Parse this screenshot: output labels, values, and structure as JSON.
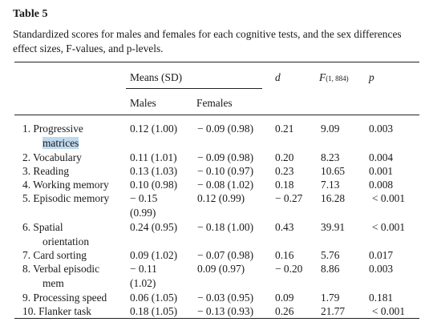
{
  "table": {
    "label": "Table 5",
    "caption_line1": "Standardized scores for males and females for each cognitive tests, and the sex differences",
    "caption_line2": "effect sizes, F-values, and p-levels.",
    "headers": {
      "means": "Means (SD)",
      "d": "d",
      "f_main": "F",
      "f_sub": "(1, 884)",
      "p": "p",
      "males": "Males",
      "females": "Females"
    },
    "rows": [
      {
        "test_line1": "1. Progressive",
        "test_line2": "matrices",
        "test_line2_highlighted": true,
        "males_line1": "0.12 (1.00)",
        "males_line2": "",
        "females": "− 0.09 (0.98)",
        "d": "0.21",
        "f": "9.09",
        "p": "0.003"
      },
      {
        "test_line1": "2. Vocabulary",
        "test_line2": "",
        "males_line1": "0.11 (1.01)",
        "males_line2": "",
        "females": "− 0.09 (0.98)",
        "d": "0.20",
        "f": "8.23",
        "p": "0.004"
      },
      {
        "test_line1": "3. Reading",
        "test_line2": "",
        "males_line1": "0.13 (1.03)",
        "males_line2": "",
        "females": "− 0.10 (0.97)",
        "d": "0.23",
        "f": "10.65",
        "p": "0.001"
      },
      {
        "test_line1": "4. Working memory",
        "test_line2": "",
        "males_line1": "0.10 (0.98)",
        "males_line2": "",
        "females": "− 0.08 (1.02)",
        "d": "0.18",
        "f": "7.13",
        "p": "0.008"
      },
      {
        "test_line1": "5. Episodic memory",
        "test_line2": "",
        "males_line1": "− 0.15",
        "males_line2": "(0.99)",
        "females": "0.12 (0.99)",
        "d": "− 0.27",
        "f": "16.28",
        "p": "< 0.001"
      },
      {
        "test_line1": "6. Spatial",
        "test_line2": "orientation",
        "males_line1": "0.24 (0.95)",
        "males_line2": "",
        "females": "− 0.18 (1.00)",
        "d": "0.43",
        "f": "39.91",
        "p": "< 0.001"
      },
      {
        "test_line1": "7. Card sorting",
        "test_line2": "",
        "males_line1": "0.09 (1.02)",
        "males_line2": "",
        "females": "− 0.07 (0.98)",
        "d": "0.16",
        "f": "5.76",
        "p": "0.017"
      },
      {
        "test_line1": "8. Verbal episodic",
        "test_line2": "mem",
        "males_line1": "− 0.11",
        "males_line2": "(1.02)",
        "females": "0.09 (0.97)",
        "d": "− 0.20",
        "f": "8.86",
        "p": "0.003"
      },
      {
        "test_line1": "9. Processing speed",
        "test_line2": "",
        "males_line1": "0.06 (1.05)",
        "males_line2": "",
        "females": "− 0.03 (0.95)",
        "d": "0.09",
        "f": "1.79",
        "p": "0.181"
      },
      {
        "test_line1": "10. Flanker task",
        "test_line2": "",
        "males_line1": "0.18 (1.05)",
        "males_line2": "",
        "females": "− 0.13 (0.93)",
        "d": "0.26",
        "f": "21.77",
        "p": "< 0.001"
      }
    ]
  }
}
